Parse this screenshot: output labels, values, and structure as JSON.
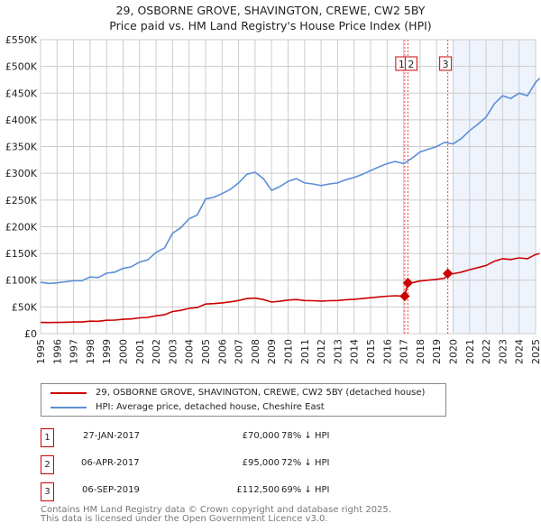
{
  "title": "29, OSBORNE GROVE, SHAVINGTON, CREWE, CW2 5BY",
  "subtitle": "Price paid vs. HM Land Registry's House Price Index (HPI)",
  "chart_data": {
    "type": "line",
    "title": "29, OSBORNE GROVE, SHAVINGTON, CREWE, CW2 5BY",
    "subtitle": "Price paid vs. HM Land Registry's House Price Index (HPI)",
    "xlim": [
      1995,
      2025
    ],
    "ylim": [
      0,
      550000
    ],
    "yticks": [
      0,
      50000,
      100000,
      150000,
      200000,
      250000,
      300000,
      350000,
      400000,
      450000,
      500000,
      550000
    ],
    "ytick_labels": [
      "£0",
      "£50K",
      "£100K",
      "£150K",
      "£200K",
      "£250K",
      "£300K",
      "£350K",
      "£400K",
      "£450K",
      "£500K",
      "£550K"
    ],
    "xticks": [
      "1995",
      "1996",
      "1997",
      "1998",
      "1999",
      "2000",
      "2001",
      "2002",
      "2003",
      "2004",
      "2005",
      "2006",
      "2007",
      "2008",
      "2009",
      "2010",
      "2011",
      "2012",
      "2013",
      "2014",
      "2015",
      "2016",
      "2017",
      "2018",
      "2019",
      "2020",
      "2021",
      "2022",
      "2023",
      "2024",
      "2025"
    ],
    "grid": true,
    "shaded_from": 2020,
    "series": [
      {
        "name": "29, OSBORNE GROVE, SHAVINGTON, CREWE, CW2 5BY (detached house)",
        "color": "#cc0000",
        "x": [
          1995,
          1995.5,
          1996,
          1996.5,
          1997,
          1997.5,
          1998,
          1998.5,
          1999,
          1999.5,
          2000,
          2000.5,
          2001,
          2001.5,
          2002,
          2002.5,
          2003,
          2003.5,
          2004,
          2004.5,
          2005,
          2005.5,
          2006,
          2006.5,
          2007,
          2007.5,
          2008,
          2008.5,
          2009,
          2009.5,
          2010,
          2010.5,
          2011,
          2011.5,
          2012,
          2012.5,
          2013,
          2013.5,
          2014,
          2014.5,
          2015,
          2015.5,
          2016,
          2016.5,
          2017.07,
          2017.26,
          2017.5,
          2018,
          2018.5,
          2019,
          2019.5,
          2019.68,
          2020,
          2020.5,
          2021,
          2021.5,
          2022,
          2022.5,
          2023,
          2023.5,
          2024,
          2024.5,
          2025,
          2025.25
        ],
        "y": [
          21000,
          20700,
          20900,
          21300,
          21800,
          21800,
          23300,
          23100,
          24900,
          25300,
          26800,
          27500,
          29500,
          30400,
          33400,
          35200,
          41400,
          43600,
          47300,
          48800,
          55400,
          56100,
          57600,
          59400,
          62000,
          65600,
          66400,
          63800,
          59000,
          60500,
          62700,
          63800,
          62000,
          61600,
          60900,
          61600,
          62000,
          63400,
          64200,
          65600,
          67100,
          68600,
          70000,
          70800,
          70000,
          95000,
          95000,
          98500,
          100100,
          101500,
          103800,
          112500,
          112000,
          115000,
          119700,
          123500,
          127600,
          135500,
          140200,
          138600,
          141800,
          140200,
          148100,
          150000
        ]
      },
      {
        "name": "HPI: Average price, detached house, Cheshire East",
        "color": "#5b8fd6",
        "x": [
          1995,
          1995.5,
          1996,
          1996.5,
          1997,
          1997.5,
          1998,
          1998.5,
          1999,
          1999.5,
          2000,
          2000.5,
          2001,
          2001.5,
          2002,
          2002.5,
          2003,
          2003.5,
          2004,
          2004.5,
          2005,
          2005.5,
          2006,
          2006.5,
          2007,
          2007.5,
          2008,
          2008.5,
          2009,
          2009.5,
          2010,
          2010.5,
          2011,
          2011.5,
          2012,
          2012.5,
          2013,
          2013.5,
          2014,
          2014.5,
          2015,
          2015.5,
          2016,
          2016.5,
          2017,
          2017.5,
          2018,
          2018.5,
          2019,
          2019.5,
          2020,
          2020.5,
          2021,
          2021.5,
          2022,
          2022.5,
          2023,
          2023.5,
          2024,
          2024.5,
          2025,
          2025.25
        ],
        "y": [
          96000,
          94000,
          95000,
          97000,
          99000,
          99000,
          106000,
          105000,
          113000,
          115000,
          122000,
          125000,
          134000,
          138000,
          152000,
          160000,
          188000,
          198000,
          215000,
          222000,
          252000,
          255000,
          262000,
          270000,
          282000,
          298000,
          302000,
          290000,
          268000,
          275000,
          285000,
          290000,
          282000,
          280000,
          277000,
          280000,
          282000,
          288000,
          292000,
          298000,
          305000,
          312000,
          318000,
          322000,
          318000,
          328000,
          340000,
          345000,
          350000,
          358000,
          355000,
          365000,
          380000,
          392000,
          405000,
          430000,
          445000,
          440000,
          450000,
          445000,
          470000,
          478000
        ]
      }
    ],
    "sales": [
      {
        "label": "1",
        "x": 2017.07,
        "y": 70000
      },
      {
        "label": "2",
        "x": 2017.26,
        "y": 95000
      },
      {
        "label": "3",
        "x": 2019.68,
        "y": 112500
      }
    ]
  },
  "legend": {
    "property": "29, OSBORNE GROVE, SHAVINGTON, CREWE, CW2 5BY (detached house)",
    "hpi": "HPI: Average price, detached house, Cheshire East"
  },
  "transactions": [
    {
      "num": "1",
      "date": "27-JAN-2017",
      "price": "£70,000",
      "diff": "78% ↓ HPI"
    },
    {
      "num": "2",
      "date": "06-APR-2017",
      "price": "£95,000",
      "diff": "72% ↓ HPI"
    },
    {
      "num": "3",
      "date": "06-SEP-2019",
      "price": "£112,500",
      "diff": "69% ↓ HPI"
    }
  ],
  "footer": {
    "line1": "Contains HM Land Registry data © Crown copyright and database right 2025.",
    "line2": "This data is licensed under the Open Government Licence v3.0."
  }
}
